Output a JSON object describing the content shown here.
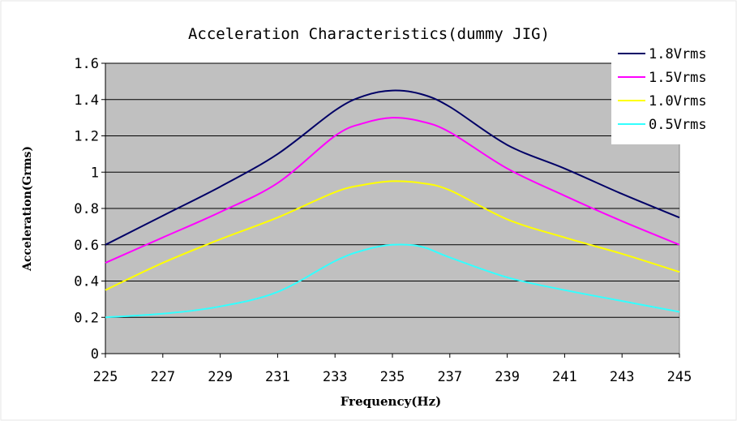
{
  "chart_data": {
    "type": "line",
    "title": "Acceleration Characteristics(dummy JIG)",
    "xlabel": "Frequency(Hz)",
    "ylabel": "Acceleration(Grms)",
    "x_ticks": [
      "225",
      "227",
      "229",
      "231",
      "233",
      "235",
      "237",
      "239",
      "241",
      "243",
      "245"
    ],
    "y_ticks": [
      "0",
      "0.2",
      "0.4",
      "0.6",
      "0.8",
      "1",
      "1.2",
      "1.4",
      "1.6"
    ],
    "xlim": [
      225,
      245
    ],
    "ylim": [
      0,
      1.6
    ],
    "grid": "horizontal",
    "legend_position": "top-right",
    "plot_background": "#c0c0c0",
    "series": [
      {
        "name": "1.8Vrms",
        "color": "#000066",
        "x": [
          225,
          227,
          229,
          231,
          233,
          234,
          235,
          236,
          237,
          239,
          241,
          243,
          245
        ],
        "y": [
          0.6,
          0.76,
          0.92,
          1.1,
          1.34,
          1.42,
          1.45,
          1.43,
          1.36,
          1.15,
          1.02,
          0.88,
          0.75
        ]
      },
      {
        "name": "1.5Vrms",
        "color": "#ff00ff",
        "x": [
          225,
          227,
          229,
          231,
          233,
          234,
          235,
          236,
          237,
          239,
          241,
          243,
          245
        ],
        "y": [
          0.5,
          0.64,
          0.78,
          0.94,
          1.2,
          1.27,
          1.3,
          1.28,
          1.22,
          1.02,
          0.87,
          0.73,
          0.6
        ]
      },
      {
        "name": "1.0Vrms",
        "color": "#ffff00",
        "x": [
          225,
          227,
          229,
          231,
          233,
          234,
          235,
          236,
          237,
          239,
          241,
          243,
          245
        ],
        "y": [
          0.35,
          0.5,
          0.63,
          0.75,
          0.89,
          0.93,
          0.95,
          0.94,
          0.9,
          0.74,
          0.64,
          0.55,
          0.45
        ]
      },
      {
        "name": "0.5Vrms",
        "color": "#33ffff",
        "x": [
          225,
          227,
          229,
          231,
          233,
          234,
          235,
          236,
          237,
          239,
          241,
          243,
          245
        ],
        "y": [
          0.2,
          0.22,
          0.26,
          0.34,
          0.51,
          0.57,
          0.6,
          0.59,
          0.53,
          0.42,
          0.35,
          0.29,
          0.23
        ]
      }
    ]
  }
}
